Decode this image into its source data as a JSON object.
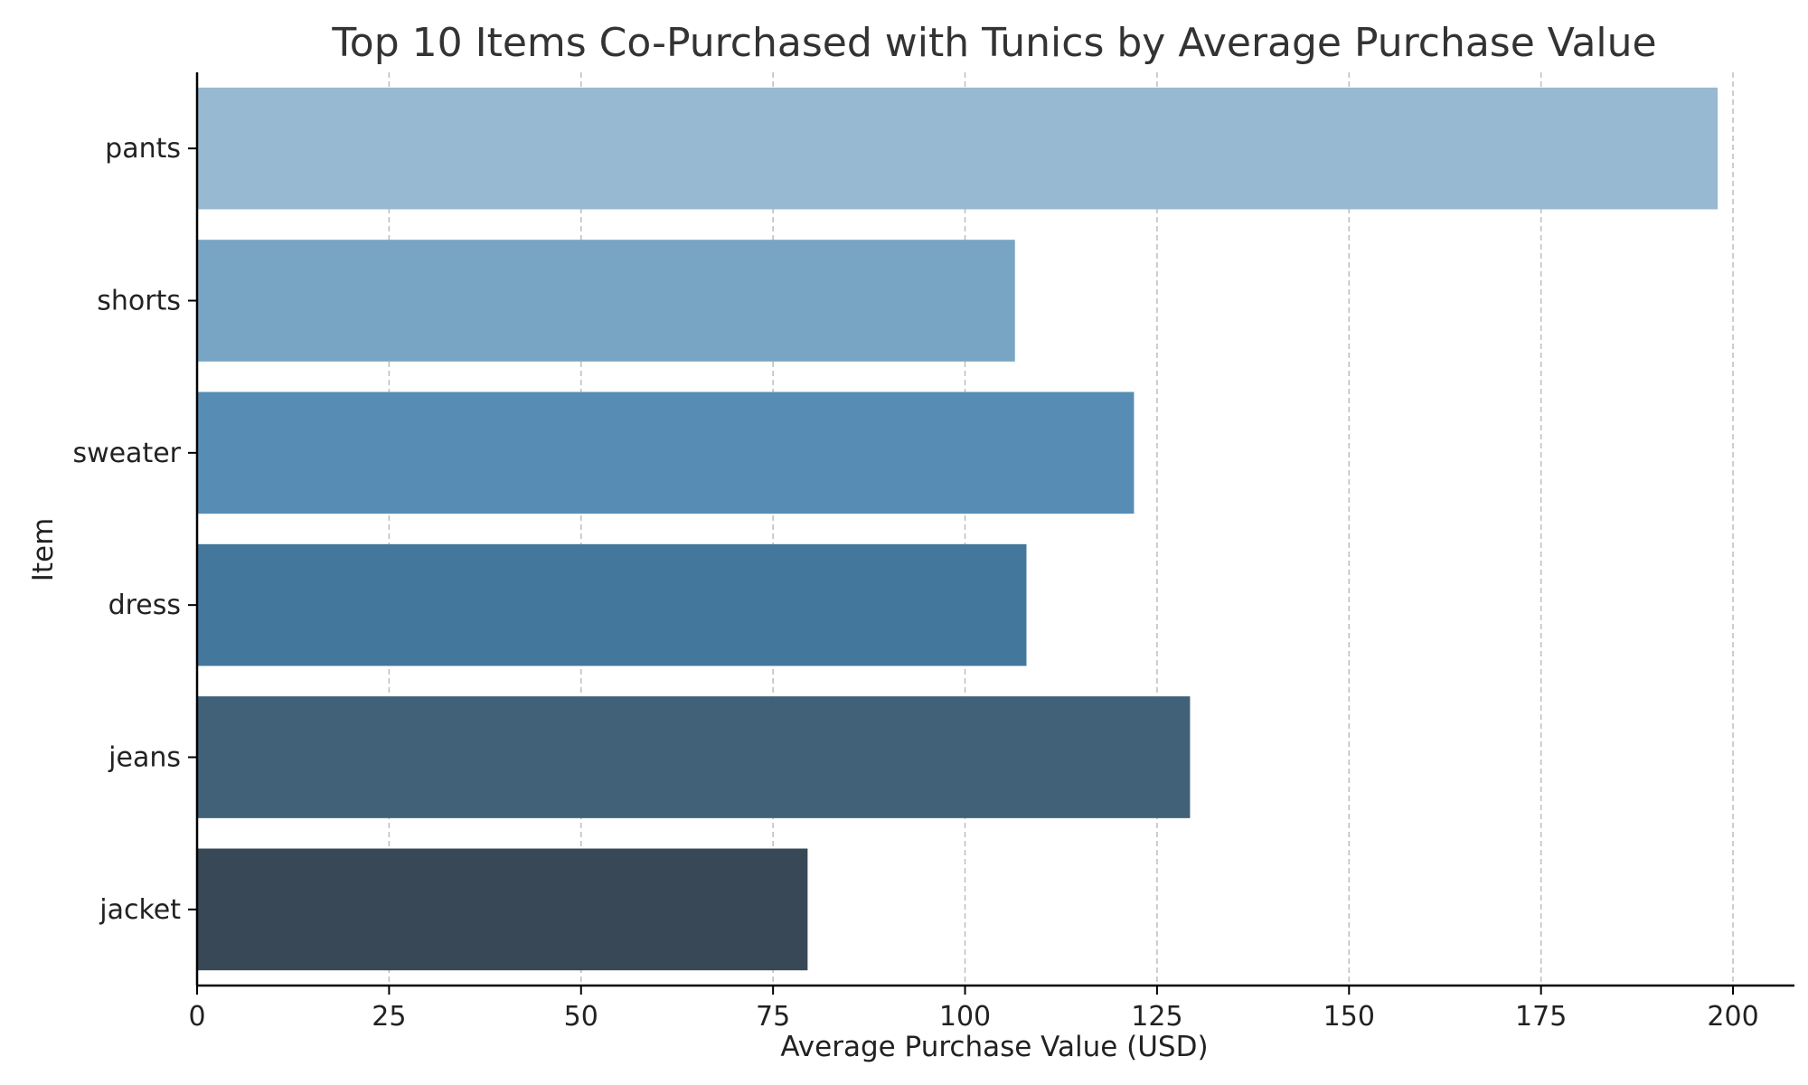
{
  "chart_data": {
    "type": "bar",
    "orientation": "horizontal",
    "title": "Top 10 Items Co-Purchased with Tunics by Average Purchase Value",
    "xlabel": "Average Purchase Value (USD)",
    "ylabel": "Item",
    "categories": [
      "pants",
      "shorts",
      "sweater",
      "dress",
      "jeans",
      "jacket"
    ],
    "values": [
      198,
      106.5,
      122,
      108,
      129.3,
      79.5
    ],
    "colors": [
      "#97b9d1",
      "#78a5c4",
      "#578db5",
      "#44779c",
      "#416178",
      "#394856"
    ],
    "xlim": [
      0,
      208
    ],
    "xticks": [
      0,
      25,
      50,
      75,
      100,
      125,
      150,
      175,
      200
    ],
    "grid": "x-dashed",
    "legend": "none"
  }
}
